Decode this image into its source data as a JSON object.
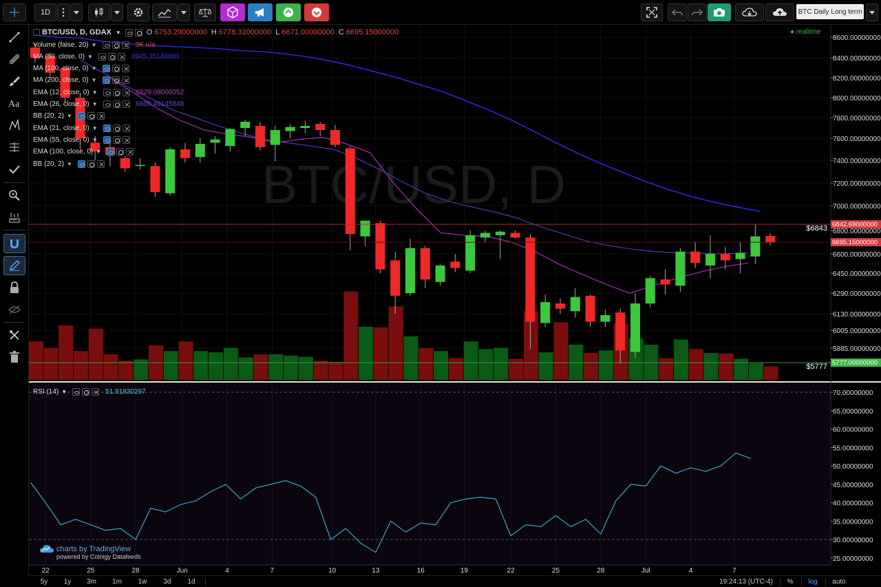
{
  "toolbar": {
    "interval": "1D",
    "layout_name": "BTC Daily Long term"
  },
  "header": {
    "symbol": "BTC/USD, D, GDAX",
    "o_label": "O",
    "o": "6753.29000000",
    "h_label": "H",
    "h": "6778.31000000",
    "l_label": "L",
    "l": "6671.00000000",
    "c_label": "C",
    "c": "6695.15000000",
    "realtime": "realtime"
  },
  "legend": [
    {
      "label": "Volume (false, 20)",
      "value": "3K  n/a",
      "color": "#e04848"
    },
    {
      "label": "MA (50, close, 0)",
      "value": "6945.35140000",
      "color": "#3a3ad0"
    },
    {
      "label": "MA (100, close, 0)",
      "value": "",
      "color": "#3a3ad0"
    },
    {
      "label": "MA (200, close, 0)",
      "value": "",
      "color": "#3a3ad0"
    },
    {
      "label": "EMA (12, close, 0)",
      "value": "6529.08006052",
      "color": "#b040c0"
    },
    {
      "label": "EMA (26, close, 0)",
      "value": "6608.49145848",
      "color": "#6050d0"
    },
    {
      "label": "BB (20, 2)",
      "value": "",
      "color": "#ccc"
    },
    {
      "label": "EMA (21, close, 0)",
      "value": "",
      "color": "#ccc"
    },
    {
      "label": "EMA (55, close, 0)",
      "value": "",
      "color": "#ccc"
    },
    {
      "label": "EMA (100, close, 0)",
      "value": "",
      "color": "#ccc"
    },
    {
      "label": "BB (20, 2)",
      "value": "",
      "color": "#ccc"
    }
  ],
  "watermark": "BTC/USD, D",
  "price_tags": {
    "level_6843": "6842.69000000",
    "level_6843_short": "$6843",
    "last": "6695.15000000",
    "level_5777": "5777.00000000",
    "level_5777_short": "$5777"
  },
  "rsi": {
    "label": "RSI (14)",
    "value": "51.91830297"
  },
  "branding": {
    "main": "charts by TradingView",
    "sub": "powered by Coinigy Datafeeds"
  },
  "bottom_bar": {
    "ranges": [
      "5y",
      "1y",
      "3m",
      "1m",
      "1w",
      "3d",
      "1d"
    ],
    "time": "19:24:13 (UTC-4)",
    "percent": "%",
    "log": "log",
    "auto": "auto"
  },
  "chart_data": {
    "type": "candlestick",
    "x_tick_labels": [
      "22",
      "25",
      "28",
      "Jun",
      "4",
      "7",
      "10",
      "13",
      "16",
      "19",
      "22",
      "25",
      "28",
      "Jul",
      "4",
      "7"
    ],
    "y_tick_labels": [
      "8600.00000000",
      "8400.00000000",
      "8200.00000000",
      "8000.00000000",
      "7800.00000000",
      "7600.00000000",
      "7400.00000000",
      "7200.00000000",
      "7000.00000000",
      "6800.00000000",
      "6600.00000000",
      "6450.00000000",
      "6290.00000000",
      "6130.00000000",
      "6005.00000000",
      "5885.00000000"
    ],
    "rsi_tick_labels": [
      "70.00000000",
      "65.00000000",
      "60.00000000",
      "55.00000000",
      "50.00000000",
      "45.00000000",
      "40.00000000",
      "35.00000000",
      "30.00000000",
      "25.00000000"
    ],
    "rsi_levels": [
      70,
      30
    ],
    "candles": [
      {
        "o": 8500,
        "h": 8540,
        "l": 8350,
        "c": 8400
      },
      {
        "o": 8420,
        "h": 8450,
        "l": 8200,
        "c": 8250
      },
      {
        "o": 8300,
        "h": 8310,
        "l": 7950,
        "c": 8000
      },
      {
        "o": 8000,
        "h": 8050,
        "l": 7500,
        "c": 7600
      },
      {
        "o": 7560,
        "h": 7620,
        "l": 7400,
        "c": 7480
      },
      {
        "o": 7520,
        "h": 7600,
        "l": 7350,
        "c": 7450
      },
      {
        "o": 7420,
        "h": 7440,
        "l": 7300,
        "c": 7330
      },
      {
        "o": 7350,
        "h": 7420,
        "l": 7320,
        "c": 7360
      },
      {
        "o": 7350,
        "h": 7380,
        "l": 7080,
        "c": 7120
      },
      {
        "o": 7110,
        "h": 7520,
        "l": 7090,
        "c": 7500
      },
      {
        "o": 7500,
        "h": 7560,
        "l": 7380,
        "c": 7420
      },
      {
        "o": 7430,
        "h": 7600,
        "l": 7380,
        "c": 7550
      },
      {
        "o": 7560,
        "h": 7620,
        "l": 7460,
        "c": 7590
      },
      {
        "o": 7530,
        "h": 7700,
        "l": 7480,
        "c": 7690
      },
      {
        "o": 7700,
        "h": 7780,
        "l": 7620,
        "c": 7760
      },
      {
        "o": 7720,
        "h": 7760,
        "l": 7490,
        "c": 7520
      },
      {
        "o": 7540,
        "h": 7720,
        "l": 7390,
        "c": 7680
      },
      {
        "o": 7670,
        "h": 7740,
        "l": 7600,
        "c": 7710
      },
      {
        "o": 7700,
        "h": 7770,
        "l": 7650,
        "c": 7720
      },
      {
        "o": 7740,
        "h": 7760,
        "l": 7620,
        "c": 7680
      },
      {
        "o": 7680,
        "h": 7730,
        "l": 7520,
        "c": 7540
      },
      {
        "o": 7510,
        "h": 7530,
        "l": 6630,
        "c": 6770
      },
      {
        "o": 6750,
        "h": 6880,
        "l": 6670,
        "c": 6880
      },
      {
        "o": 6860,
        "h": 6880,
        "l": 6450,
        "c": 6480
      },
      {
        "o": 6550,
        "h": 6620,
        "l": 6130,
        "c": 6270
      },
      {
        "o": 6290,
        "h": 6730,
        "l": 6270,
        "c": 6650
      },
      {
        "o": 6650,
        "h": 6670,
        "l": 6330,
        "c": 6400
      },
      {
        "o": 6380,
        "h": 6520,
        "l": 6350,
        "c": 6510
      },
      {
        "o": 6540,
        "h": 6600,
        "l": 6460,
        "c": 6490
      },
      {
        "o": 6470,
        "h": 6800,
        "l": 6450,
        "c": 6760
      },
      {
        "o": 6740,
        "h": 6800,
        "l": 6700,
        "c": 6780
      },
      {
        "o": 6760,
        "h": 6800,
        "l": 6560,
        "c": 6790
      },
      {
        "o": 6780,
        "h": 6800,
        "l": 6730,
        "c": 6740
      },
      {
        "o": 6740,
        "h": 6770,
        "l": 5880,
        "c": 6070
      },
      {
        "o": 6060,
        "h": 6280,
        "l": 6030,
        "c": 6220
      },
      {
        "o": 6210,
        "h": 6250,
        "l": 6130,
        "c": 6170
      },
      {
        "o": 6150,
        "h": 6330,
        "l": 6100,
        "c": 6260
      },
      {
        "o": 6270,
        "h": 6280,
        "l": 6030,
        "c": 6070
      },
      {
        "o": 6070,
        "h": 6160,
        "l": 6030,
        "c": 6120
      },
      {
        "o": 6140,
        "h": 6170,
        "l": 5780,
        "c": 5870
      },
      {
        "o": 5860,
        "h": 6290,
        "l": 5820,
        "c": 6210
      },
      {
        "o": 6210,
        "h": 6430,
        "l": 6180,
        "c": 6410
      },
      {
        "o": 6400,
        "h": 6480,
        "l": 6280,
        "c": 6360
      },
      {
        "o": 6350,
        "h": 6650,
        "l": 6300,
        "c": 6620
      },
      {
        "o": 6620,
        "h": 6700,
        "l": 6490,
        "c": 6530
      },
      {
        "o": 6510,
        "h": 6760,
        "l": 6410,
        "c": 6600
      },
      {
        "o": 6600,
        "h": 6660,
        "l": 6480,
        "c": 6550
      },
      {
        "o": 6560,
        "h": 6700,
        "l": 6450,
        "c": 6610
      },
      {
        "o": 6580,
        "h": 6850,
        "l": 6520,
        "c": 6750
      },
      {
        "o": 6753.29,
        "h": 6778.31,
        "l": 6671.0,
        "c": 6695.15
      }
    ],
    "volume": [
      60,
      50,
      85,
      45,
      80,
      40,
      30,
      32,
      54,
      45,
      60,
      45,
      43,
      50,
      35,
      40,
      40,
      38,
      36,
      30,
      28,
      138,
      83,
      82,
      115,
      68,
      50,
      45,
      34,
      60,
      48,
      50,
      33,
      107,
      43,
      90,
      55,
      42,
      46,
      88,
      65,
      55,
      34,
      63,
      48,
      42,
      41,
      33,
      26,
      21
    ],
    "ma50": [
      8620,
      8600,
      8590,
      8560,
      8540,
      8520,
      8510,
      8500,
      8490,
      8470,
      8460,
      8440,
      8410,
      8370,
      8320,
      8260,
      8200,
      8130,
      8060,
      7970,
      7880,
      7780,
      7670,
      7560,
      7460,
      7370,
      7290,
      7210,
      7140,
      7080,
      7030,
      6990,
      6955
    ],
    "ema26": [
      8380,
      8250,
      8120,
      8000,
      7880,
      7800,
      7720,
      7650,
      7590,
      7560,
      7530,
      7500,
      7420,
      7320,
      7210,
      7110,
      7040,
      6990,
      6950,
      6900,
      6830,
      6770,
      6710,
      6670,
      6640,
      6620,
      6610,
      6605,
      6600,
      6610
    ],
    "ema12": [
      8200,
      8050,
      7890,
      7770,
      7680,
      7640,
      7610,
      7560,
      7590,
      7610,
      7550,
      7470,
      7200,
      6970,
      6780,
      6760,
      6750,
      6700,
      6620,
      6520,
      6440,
      6360,
      6290,
      6350,
      6410,
      6460,
      6500,
      6529
    ],
    "rsi_values": [
      45.5,
      40,
      34,
      35.5,
      34,
      32.5,
      33,
      30,
      38.5,
      37.5,
      39.5,
      40.5,
      43,
      45,
      41,
      44,
      45,
      46,
      44.5,
      41.5,
      30,
      33,
      29,
      26.5,
      35,
      32,
      34.5,
      34,
      40,
      41,
      41.5,
      41,
      31,
      34,
      33.5,
      36.5,
      33.5,
      35.5,
      31.5,
      40.5,
      45,
      44.5,
      50,
      48,
      49.5,
      48.5,
      50,
      53.5,
      52
    ]
  }
}
